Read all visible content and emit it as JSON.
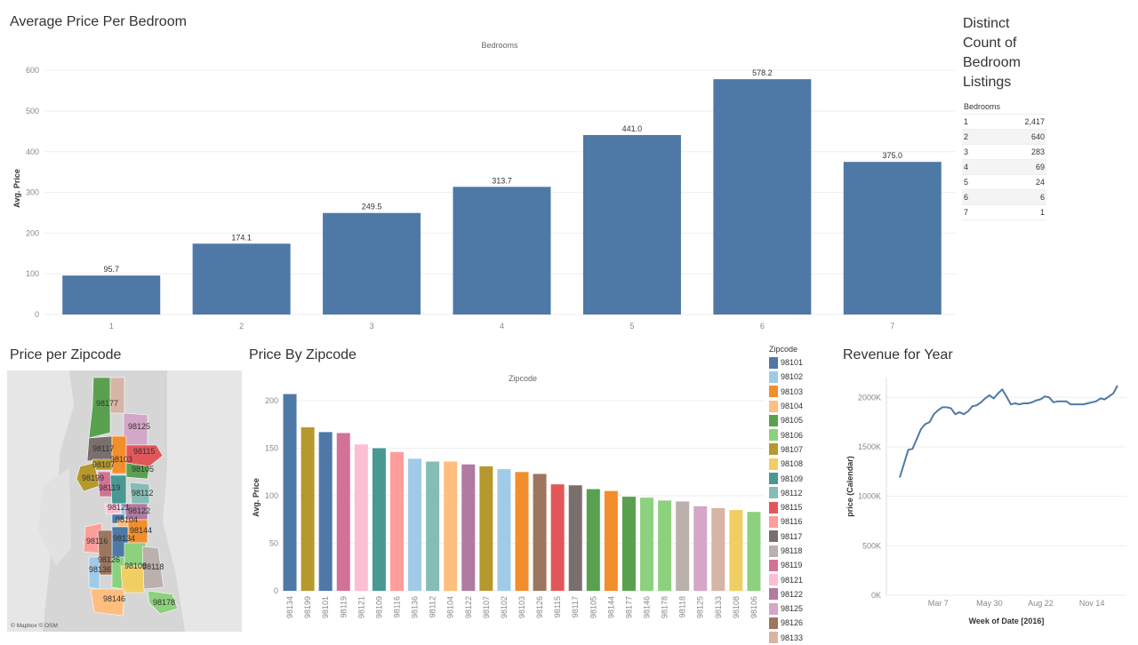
{
  "titles": {
    "avg_price_bedroom": "Average Price Per Bedroom",
    "distinct_count": "Distinct Count of Bedroom Listings",
    "price_per_zip_map": "Price per Zipcode",
    "price_by_zip": "Price By Zipcode",
    "revenue": "Revenue for Year"
  },
  "bed_table": {
    "header": "Bedrooms",
    "rows": [
      {
        "bedrooms": "1",
        "count": "2,417"
      },
      {
        "bedrooms": "2",
        "count": "640"
      },
      {
        "bedrooms": "3",
        "count": "283"
      },
      {
        "bedrooms": "4",
        "count": "69"
      },
      {
        "bedrooms": "5",
        "count": "24"
      },
      {
        "bedrooms": "6",
        "count": "6"
      },
      {
        "bedrooms": "7",
        "count": "1"
      }
    ]
  },
  "map": {
    "attribution": "© Mapbox © OSM",
    "zip_labels": [
      "98177",
      "98125",
      "98117",
      "98103",
      "98115",
      "98107",
      "98105",
      "98199",
      "98119",
      "98112",
      "98121",
      "98122",
      "98104",
      "98144",
      "98134",
      "98116",
      "98126",
      "98108",
      "98118",
      "98136",
      "98146",
      "98178"
    ]
  },
  "legend": {
    "title": "Zipcode",
    "items": [
      {
        "zip": "98101",
        "color": "#4e79a7"
      },
      {
        "zip": "98102",
        "color": "#a0cbe8"
      },
      {
        "zip": "98103",
        "color": "#f28e2b"
      },
      {
        "zip": "98104",
        "color": "#ffbe7d"
      },
      {
        "zip": "98105",
        "color": "#59a14f"
      },
      {
        "zip": "98106",
        "color": "#8cd17d"
      },
      {
        "zip": "98107",
        "color": "#b6992d"
      },
      {
        "zip": "98108",
        "color": "#f1ce63"
      },
      {
        "zip": "98109",
        "color": "#499894"
      },
      {
        "zip": "98112",
        "color": "#86bcb6"
      },
      {
        "zip": "98115",
        "color": "#e15759"
      },
      {
        "zip": "98116",
        "color": "#ff9d9a"
      },
      {
        "zip": "98117",
        "color": "#79706e"
      },
      {
        "zip": "98118",
        "color": "#bab0ac"
      },
      {
        "zip": "98119",
        "color": "#d37295"
      },
      {
        "zip": "98121",
        "color": "#fabfd2"
      },
      {
        "zip": "98122",
        "color": "#b07aa1"
      },
      {
        "zip": "98125",
        "color": "#d4a6c8"
      },
      {
        "zip": "98126",
        "color": "#9d7660"
      },
      {
        "zip": "98133",
        "color": "#d7b5a6"
      }
    ]
  },
  "chart_data": [
    {
      "type": "bar",
      "title": "Average Price Per Bedroom",
      "header": "Bedrooms",
      "ylabel": "Avg. Price",
      "ylim": [
        0,
        620
      ],
      "yticks": [
        0,
        100,
        200,
        300,
        400,
        500,
        600
      ],
      "categories": [
        "1",
        "2",
        "3",
        "4",
        "5",
        "6",
        "7"
      ],
      "values": [
        95.7,
        174.1,
        249.5,
        313.7,
        441.0,
        578.2,
        375.0
      ],
      "value_labels": [
        "95.7",
        "174.1",
        "249.5",
        "313.7",
        "441.0",
        "578.2",
        "375.0"
      ],
      "color": "#4e79a7",
      "grid": true
    },
    {
      "type": "bar",
      "title": "Price By Zipcode",
      "header": "Zipcode",
      "ylabel": "Avg. Price",
      "ylim": [
        0,
        215
      ],
      "yticks": [
        0,
        50,
        100,
        150,
        200
      ],
      "categories": [
        "98134",
        "98199",
        "98101",
        "98119",
        "98121",
        "98109",
        "98116",
        "98136",
        "98112",
        "98104",
        "98122",
        "98107",
        "98102",
        "98103",
        "98126",
        "98115",
        "98117",
        "98105",
        "98144",
        "98177",
        "98146",
        "98178",
        "98118",
        "98125",
        "98133",
        "98108",
        "98106"
      ],
      "values": [
        207,
        172,
        167,
        166,
        154,
        150,
        146,
        139,
        136,
        136,
        133,
        131,
        128,
        125,
        123,
        112,
        111,
        107,
        105,
        99,
        98,
        95,
        94,
        89,
        87,
        85,
        83
      ],
      "colors": [
        "#4e79a7",
        "#b6992d",
        "#4e79a7",
        "#d37295",
        "#fabfd2",
        "#499894",
        "#ff9d9a",
        "#a0cbe8",
        "#86bcb6",
        "#ffbe7d",
        "#b07aa1",
        "#b6992d",
        "#a0cbe8",
        "#f28e2b",
        "#9d7660",
        "#e15759",
        "#79706e",
        "#59a14f",
        "#f28e2b",
        "#59a14f",
        "#8cd17d",
        "#8cd17d",
        "#bab0ac",
        "#d4a6c8",
        "#d7b5a6",
        "#f1ce63",
        "#8cd17d"
      ],
      "grid": true
    },
    {
      "type": "line",
      "title": "Revenue for Year",
      "xlabel": "Week of Date [2016]",
      "ylabel": "price (Calendar)",
      "ylim": [
        0,
        2200000
      ],
      "yticks": [
        0,
        500000,
        1000000,
        1500000,
        2000000
      ],
      "ytick_labels": [
        "0K",
        "500K",
        "1000K",
        "1500K",
        "2000K"
      ],
      "xticks": [
        "Mar 7",
        "May 30",
        "Aug 22",
        "Nov 14"
      ],
      "xtick_weeks": [
        10,
        22,
        34,
        46
      ],
      "x_weeks": [
        1,
        2,
        3,
        4,
        5,
        6,
        7,
        8,
        9,
        10,
        11,
        12,
        13,
        14,
        15,
        16,
        17,
        18,
        19,
        20,
        21,
        22,
        23,
        24,
        25,
        26,
        27,
        28,
        29,
        30,
        31,
        32,
        33,
        34,
        35,
        36,
        37,
        38,
        39,
        40,
        41,
        42,
        43,
        44,
        45,
        46,
        47,
        48,
        49,
        50,
        51,
        52
      ],
      "values": [
        1190000,
        1330000,
        1470000,
        1480000,
        1580000,
        1680000,
        1730000,
        1750000,
        1830000,
        1870000,
        1900000,
        1900000,
        1890000,
        1830000,
        1850000,
        1830000,
        1860000,
        1910000,
        1920000,
        1950000,
        1990000,
        2020000,
        1990000,
        2040000,
        2080000,
        2010000,
        1930000,
        1940000,
        1930000,
        1940000,
        1940000,
        1950000,
        1970000,
        1980000,
        2010000,
        2000000,
        1950000,
        1960000,
        1960000,
        1960000,
        1930000,
        1930000,
        1930000,
        1930000,
        1940000,
        1950000,
        1960000,
        1990000,
        1980000,
        2010000,
        2040000,
        2120000
      ],
      "color": "#4e79a7",
      "grid": true
    }
  ]
}
